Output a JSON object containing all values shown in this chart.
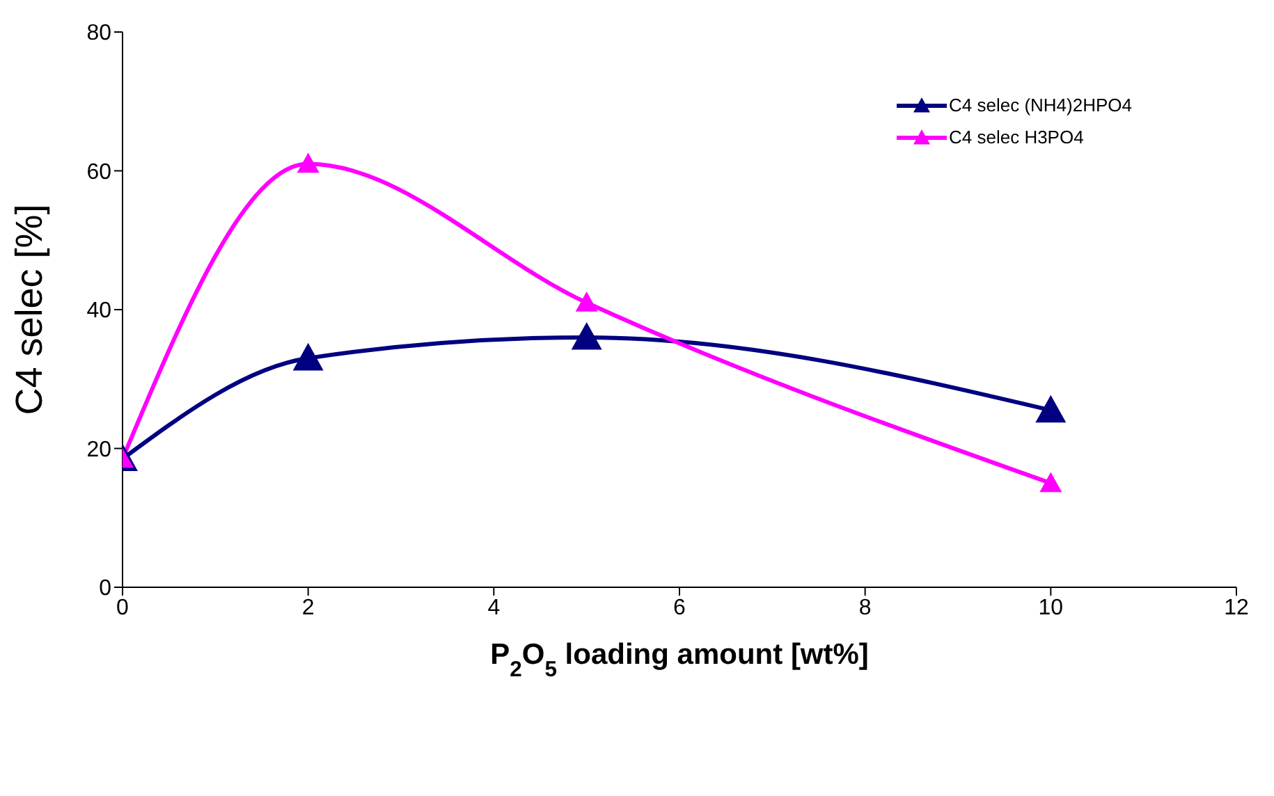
{
  "chart_data": {
    "type": "line",
    "xlabel": "P$_{2}$O$_{5}$ loading amount [wt%]",
    "ylabel": "C4 selec [%]",
    "x": [
      0,
      2,
      5,
      10
    ],
    "series": [
      {
        "name": "C4 selec (NH4)2HPO4",
        "color": "#000080",
        "values": [
          18.5,
          33,
          36,
          25.5
        ]
      },
      {
        "name": "C4 selec H3PO4",
        "color": "#ff00ff",
        "values": [
          18.5,
          61,
          41,
          15
        ]
      }
    ],
    "xlim": [
      0,
      12
    ],
    "xticks": [
      0,
      2,
      4,
      6,
      8,
      10,
      12
    ],
    "ylim": [
      0,
      80
    ],
    "yticks": [
      0,
      20,
      40,
      60,
      80
    ],
    "grid": false,
    "legend": "top right",
    "marker": "triangle",
    "line_style": "solid"
  }
}
